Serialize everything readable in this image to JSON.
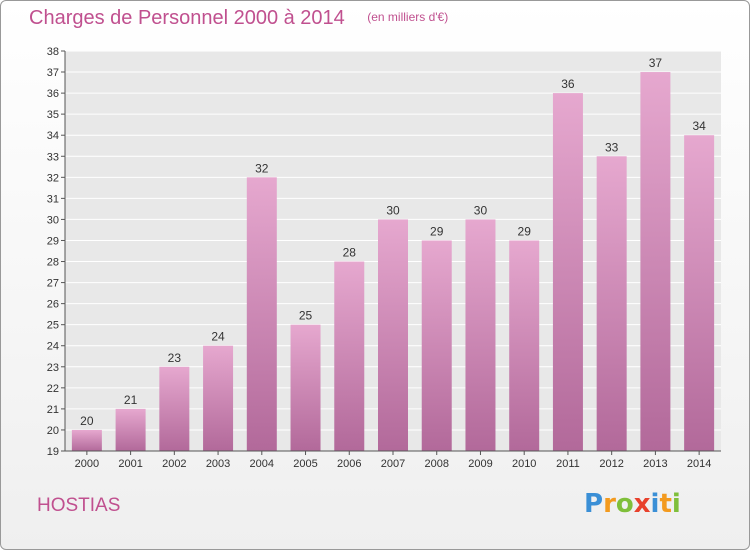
{
  "title": "Charges de Personnel 2000 à 2014",
  "subtitle": "(en milliers d'€)",
  "commune": "HOSTIAS",
  "logo_text": "Proxiti",
  "colors": {
    "title": "#c0508f",
    "bar_top": "#e6a8cf",
    "bar_bottom": "#b2699a",
    "grid": "#ffffff",
    "plot_bg": "#e8e8e8"
  },
  "chart_data": {
    "type": "bar",
    "title": "Charges de Personnel 2000 à 2014",
    "subtitle": "(en milliers d'€)",
    "categories": [
      "2000",
      "2001",
      "2002",
      "2003",
      "2004",
      "2005",
      "2006",
      "2007",
      "2008",
      "2009",
      "2010",
      "2011",
      "2012",
      "2013",
      "2014"
    ],
    "values": [
      20,
      21,
      23,
      24,
      32,
      25,
      28,
      30,
      29,
      30,
      29,
      36,
      33,
      37,
      34
    ],
    "ylim": [
      19,
      38
    ],
    "yticks": [
      19,
      20,
      21,
      22,
      23,
      24,
      25,
      26,
      27,
      28,
      29,
      30,
      31,
      32,
      33,
      34,
      35,
      36,
      37,
      38
    ],
    "grid": true,
    "data_labels": true
  }
}
